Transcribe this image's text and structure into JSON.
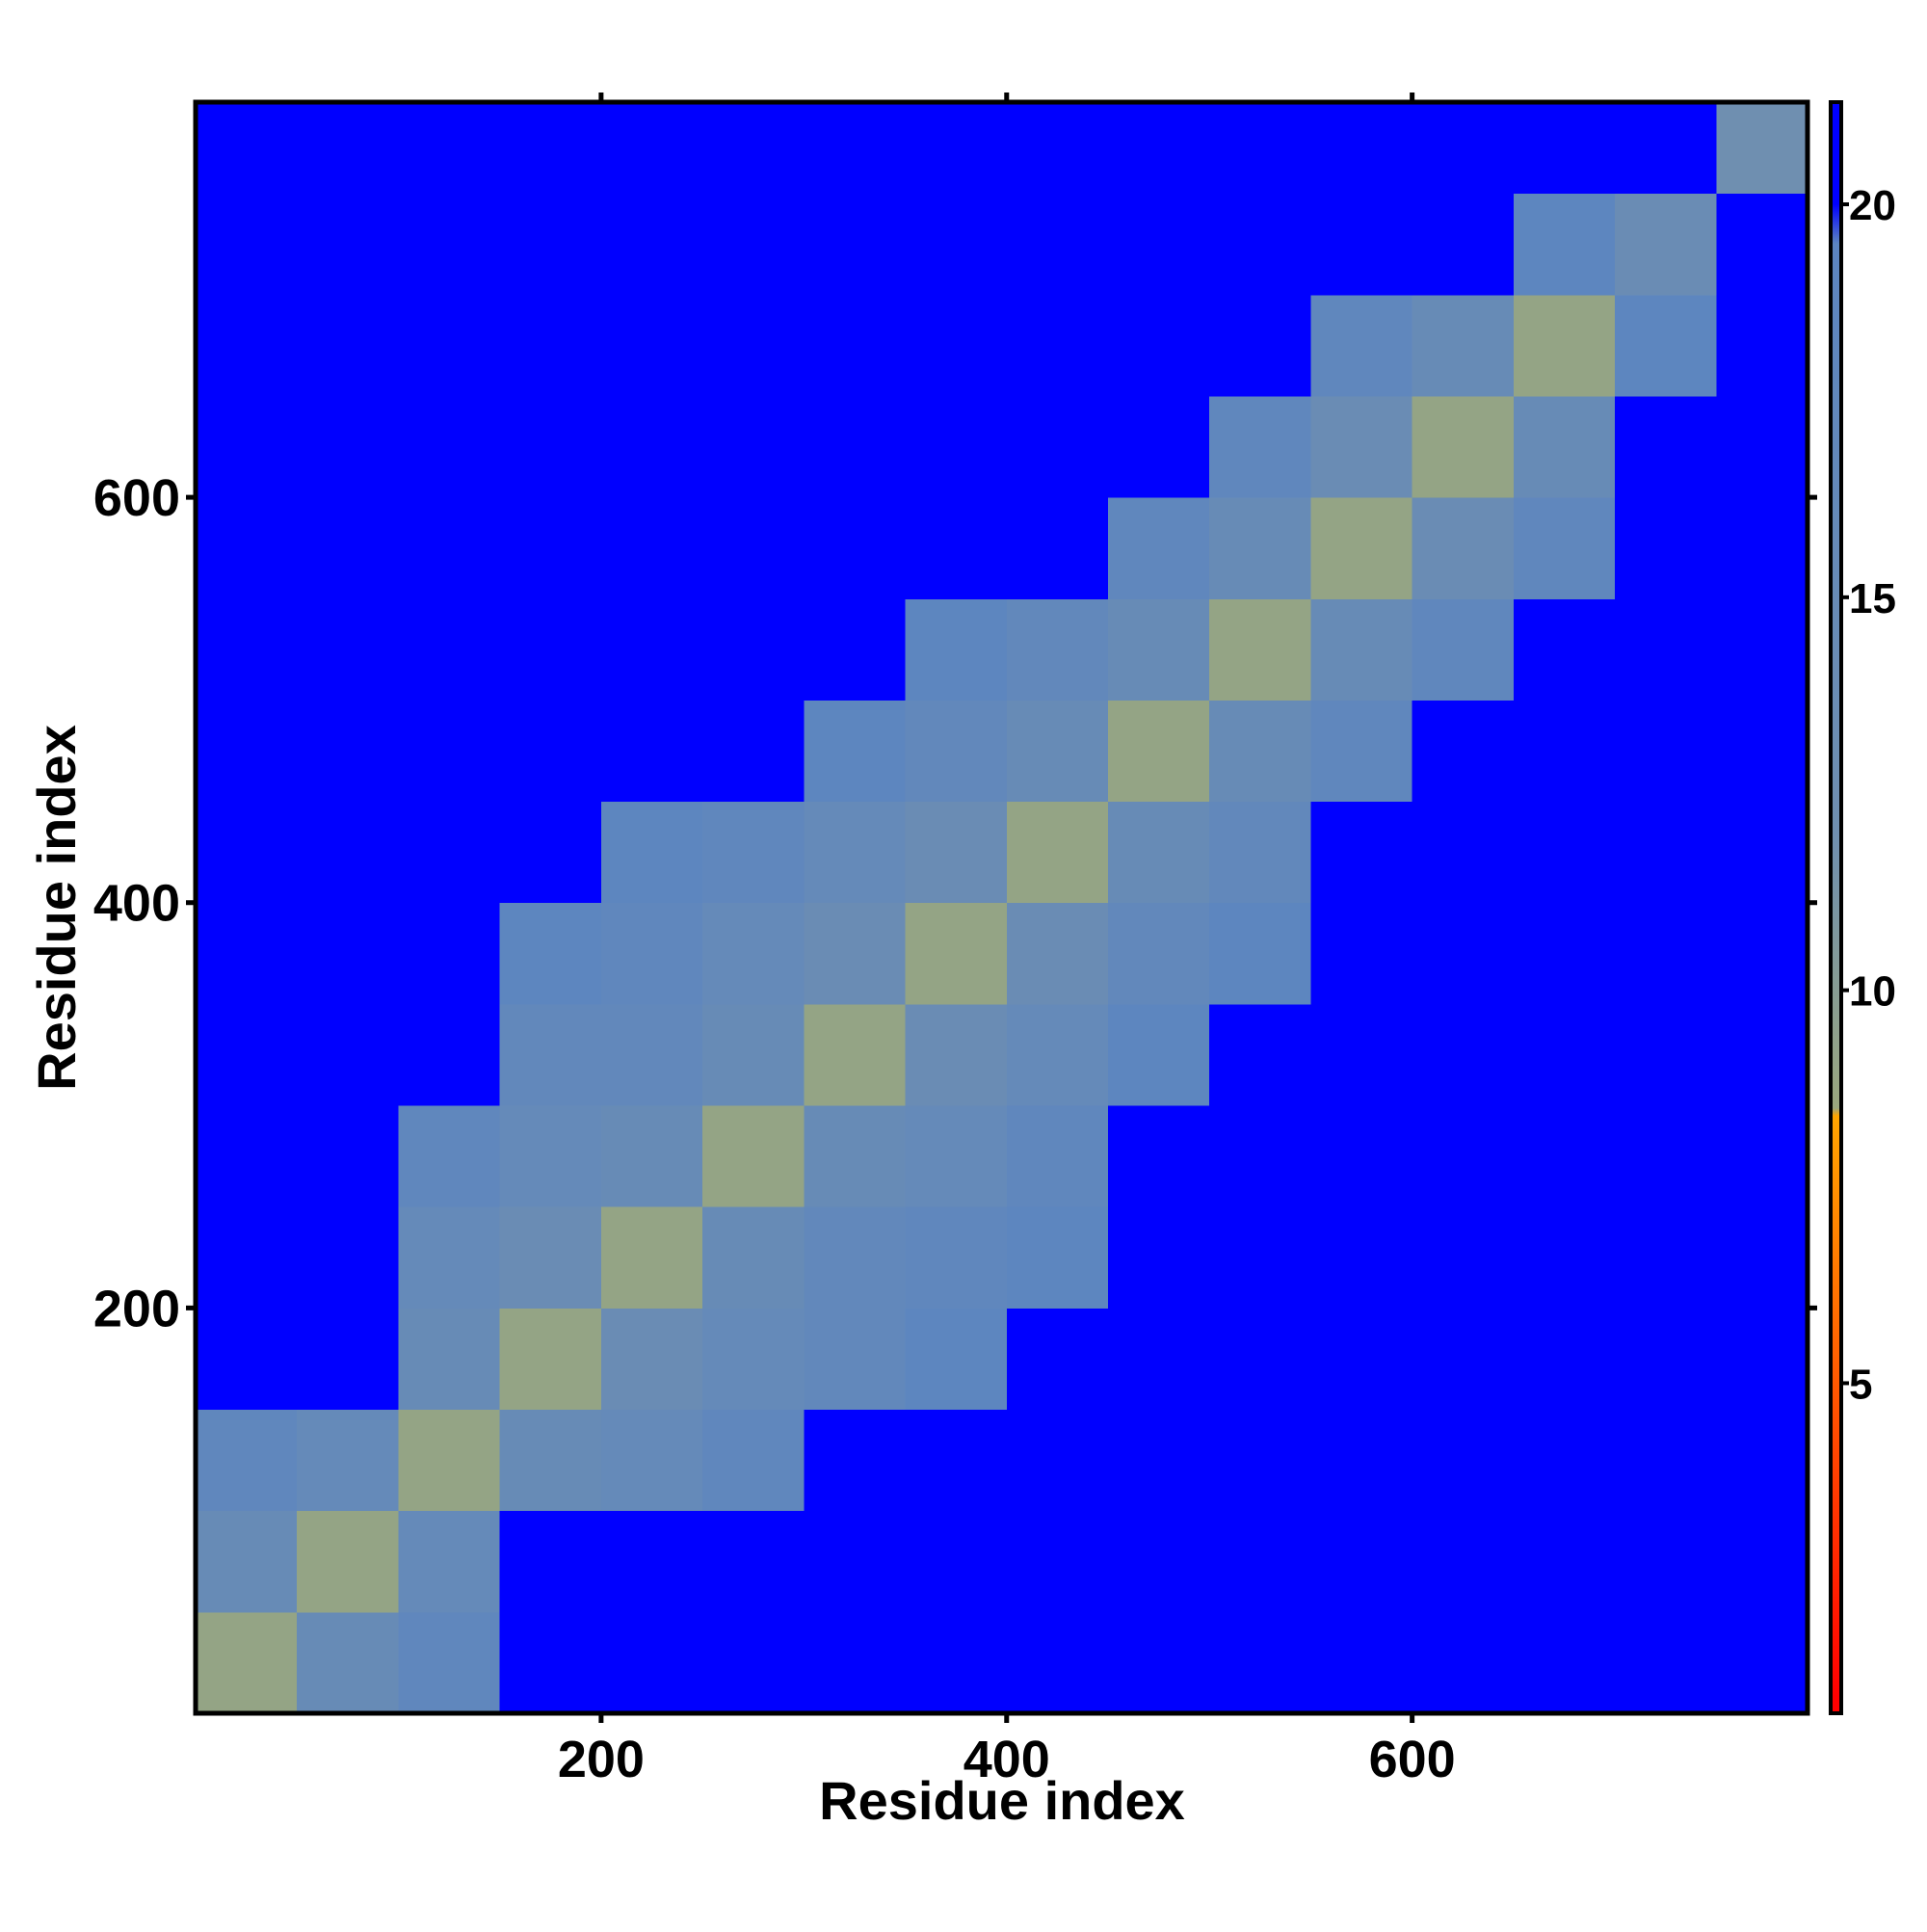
{
  "chart_data": {
    "type": "heatmap",
    "xlabel": "Residue index",
    "ylabel": "Residue index",
    "bins": [
      0,
      50,
      100,
      150,
      200,
      250,
      300,
      350,
      400,
      450,
      500,
      550,
      600,
      650,
      700,
      750,
      795
    ],
    "xlim": [
      0,
      795
    ],
    "ylim": [
      0,
      795
    ],
    "xticks": [
      200,
      400,
      600
    ],
    "yticks": [
      200,
      400,
      600
    ],
    "z": [
      [
        9,
        15,
        18,
        21,
        21,
        21,
        21,
        21,
        21,
        21,
        21,
        21,
        21,
        21,
        21,
        21
      ],
      [
        15,
        9,
        16,
        20,
        21,
        21,
        21,
        21,
        21,
        21,
        21,
        21,
        21,
        21,
        21,
        21
      ],
      [
        18,
        16,
        9,
        15,
        16,
        18,
        20,
        21,
        21,
        21,
        21,
        21,
        21,
        21,
        21,
        21
      ],
      [
        21,
        20,
        15,
        9,
        14,
        16,
        17,
        19,
        21,
        21,
        21,
        21,
        21,
        21,
        21,
        21
      ],
      [
        21,
        21,
        16,
        14,
        9,
        15,
        17,
        18,
        19,
        21,
        21,
        21,
        21,
        21,
        21,
        21
      ],
      [
        21,
        21,
        18,
        16,
        15,
        9,
        15,
        16,
        18,
        20,
        21,
        21,
        21,
        21,
        21,
        21
      ],
      [
        21,
        21,
        20,
        17,
        17,
        15,
        9,
        14,
        16,
        19,
        21,
        21,
        21,
        21,
        21,
        21
      ],
      [
        21,
        21,
        21,
        19,
        18,
        16,
        14,
        9,
        14,
        17,
        19,
        21,
        21,
        21,
        21,
        21
      ],
      [
        21,
        21,
        21,
        21,
        19,
        18,
        16,
        14,
        9,
        15,
        17,
        20,
        21,
        21,
        21,
        21
      ],
      [
        21,
        21,
        21,
        21,
        21,
        20,
        19,
        17,
        15,
        9,
        15,
        18,
        20,
        21,
        21,
        21
      ],
      [
        21,
        21,
        21,
        21,
        21,
        21,
        21,
        19,
        17,
        15,
        9,
        15,
        18,
        20,
        21,
        21
      ],
      [
        21,
        21,
        21,
        21,
        21,
        21,
        21,
        21,
        20,
        18,
        15,
        9,
        14,
        18,
        21,
        21
      ],
      [
        21,
        21,
        21,
        21,
        21,
        21,
        21,
        21,
        21,
        20,
        18,
        14,
        9,
        15,
        21,
        21
      ],
      [
        21,
        21,
        21,
        21,
        21,
        21,
        21,
        21,
        21,
        21,
        20,
        18,
        15,
        9,
        19,
        21
      ],
      [
        21,
        21,
        21,
        21,
        21,
        21,
        21,
        21,
        21,
        21,
        21,
        21,
        21,
        19,
        14,
        20
      ],
      [
        21,
        21,
        21,
        21,
        21,
        21,
        21,
        21,
        21,
        21,
        21,
        21,
        21,
        21,
        20,
        12
      ]
    ],
    "colorscale": [
      {
        "value": 1,
        "color": "#ff0000"
      },
      {
        "value": 8.4,
        "color": "#ffa500"
      },
      {
        "value": 8.5,
        "color": "#9aa77e"
      },
      {
        "value": 12,
        "color": "#6f8fb0"
      },
      {
        "value": 19.5,
        "color": "#5c85c0"
      },
      {
        "value": 20,
        "color": "#0000ff"
      },
      {
        "value": 21.3,
        "color": "#0000ff"
      }
    ],
    "colorbar_lim": [
      0.8,
      21.3
    ],
    "colorbar_ticks": [
      5,
      10,
      15,
      20
    ]
  }
}
